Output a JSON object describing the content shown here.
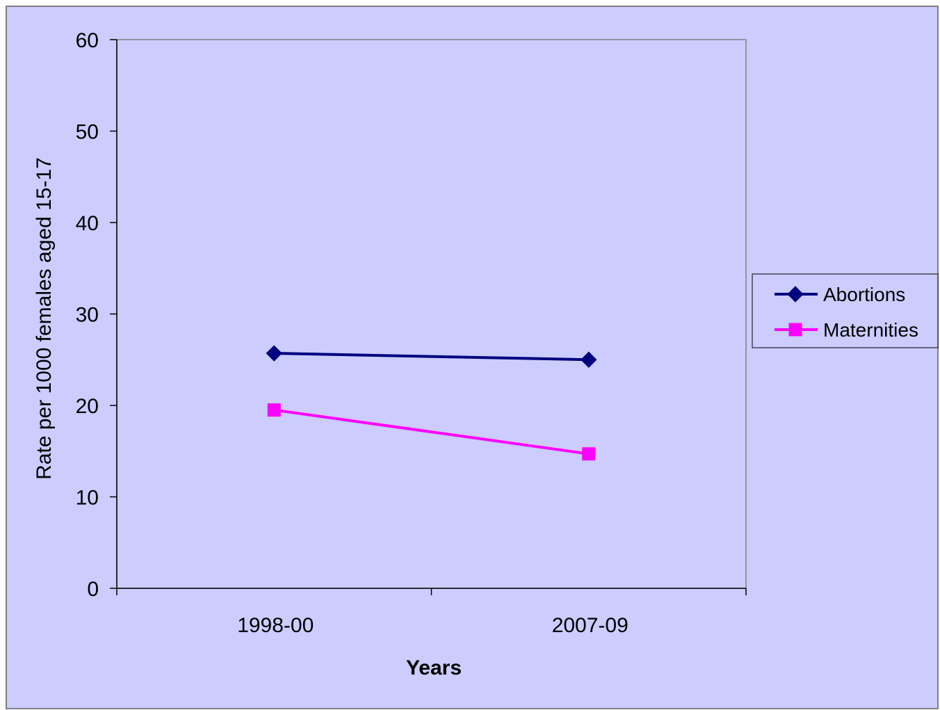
{
  "chart_data": {
    "type": "line",
    "title": "",
    "xlabel": "Years",
    "ylabel": "Rate per 1000 females aged 15-17",
    "categories": [
      "1998-00",
      "2007-09"
    ],
    "ylim": [
      0,
      60
    ],
    "yticks": [
      0,
      10,
      20,
      30,
      40,
      50,
      60
    ],
    "grid": false,
    "legend_position": "right",
    "background_color": "#ccccff",
    "series": [
      {
        "name": "Abortions",
        "values": [
          25.7,
          25.0
        ],
        "color": "#000080",
        "marker": "diamond"
      },
      {
        "name": "Maternities",
        "values": [
          19.5,
          14.7
        ],
        "color": "#ff00ff",
        "marker": "square"
      }
    ]
  }
}
